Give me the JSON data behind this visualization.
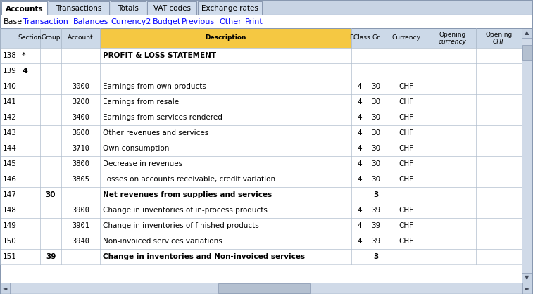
{
  "tabs": [
    "Accounts",
    "Transactions",
    "Totals",
    "VAT codes",
    "Exchange rates"
  ],
  "active_tab": "Accounts",
  "nav_links": [
    "Base",
    "Transaction",
    "Balances",
    "Currency2",
    "Budget",
    "Previous",
    "Other",
    "Print"
  ],
  "header_bg": "#f5c842",
  "header_bg_other": "#ccd9e8",
  "tab_bg": "#d0dcec",
  "active_tab_bg": "#ffffff",
  "panel_bg": "#ffffff",
  "outer_bg": "#c8d4e4",
  "border_color": "#8898b0",
  "grid_color": "#b0bece",
  "rows": [
    {
      "line": "138",
      "section": "*",
      "group": "",
      "account": "",
      "description": "PROFIT & LOSS STATEMENT",
      "bclass": "",
      "gr": "",
      "currency": "",
      "bold": true,
      "section_bold": false
    },
    {
      "line": "139",
      "section": "4",
      "group": "",
      "account": "",
      "description": "",
      "bclass": "",
      "gr": "",
      "currency": "",
      "bold": false,
      "section_bold": true
    },
    {
      "line": "140",
      "section": "",
      "group": "",
      "account": "3000",
      "description": "Earnings from own products",
      "bclass": "4",
      "gr": "30",
      "currency": "CHF",
      "bold": false,
      "section_bold": false
    },
    {
      "line": "141",
      "section": "",
      "group": "",
      "account": "3200",
      "description": "Earnings from resale",
      "bclass": "4",
      "gr": "30",
      "currency": "CHF",
      "bold": false,
      "section_bold": false
    },
    {
      "line": "142",
      "section": "",
      "group": "",
      "account": "3400",
      "description": "Earnings from services rendered",
      "bclass": "4",
      "gr": "30",
      "currency": "CHF",
      "bold": false,
      "section_bold": false
    },
    {
      "line": "143",
      "section": "",
      "group": "",
      "account": "3600",
      "description": "Other revenues and services",
      "bclass": "4",
      "gr": "30",
      "currency": "CHF",
      "bold": false,
      "section_bold": false
    },
    {
      "line": "144",
      "section": "",
      "group": "",
      "account": "3710",
      "description": "Own consumption",
      "bclass": "4",
      "gr": "30",
      "currency": "CHF",
      "bold": false,
      "section_bold": false
    },
    {
      "line": "145",
      "section": "",
      "group": "",
      "account": "3800",
      "description": "Decrease in revenues",
      "bclass": "4",
      "gr": "30",
      "currency": "CHF",
      "bold": false,
      "section_bold": false
    },
    {
      "line": "146",
      "section": "",
      "group": "",
      "account": "3805",
      "description": "Losses on accounts receivable, credit variation",
      "bclass": "4",
      "gr": "30",
      "currency": "CHF",
      "bold": false,
      "section_bold": false
    },
    {
      "line": "147",
      "section": "",
      "group": "30",
      "account": "",
      "description": "Net revenues from supplies and services",
      "bclass": "",
      "gr": "3",
      "currency": "",
      "bold": true,
      "section_bold": false
    },
    {
      "line": "148",
      "section": "",
      "group": "",
      "account": "3900",
      "description": "Change in inventories of in-process products",
      "bclass": "4",
      "gr": "39",
      "currency": "CHF",
      "bold": false,
      "section_bold": false
    },
    {
      "line": "149",
      "section": "",
      "group": "",
      "account": "3901",
      "description": "Change in inventories of finished products",
      "bclass": "4",
      "gr": "39",
      "currency": "CHF",
      "bold": false,
      "section_bold": false
    },
    {
      "line": "150",
      "section": "",
      "group": "",
      "account": "3940",
      "description": "Non-invoiced services variations",
      "bclass": "4",
      "gr": "39",
      "currency": "CHF",
      "bold": false,
      "section_bold": false
    },
    {
      "line": "151",
      "section": "",
      "group": "39",
      "account": "",
      "description": "Change in inventories and Non-invoiced services",
      "bclass": "",
      "gr": "3",
      "currency": "",
      "bold": true,
      "section_bold": false
    }
  ]
}
